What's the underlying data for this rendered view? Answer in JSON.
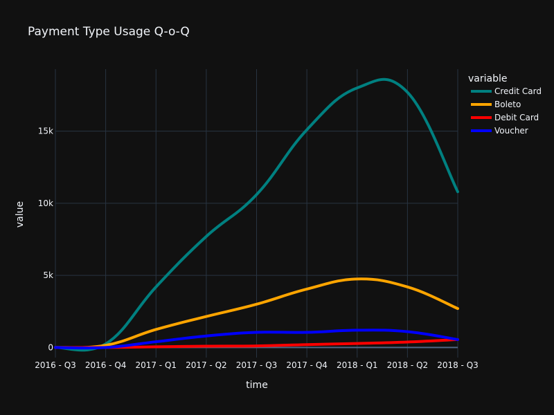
{
  "chart_data": {
    "type": "line",
    "title": "Payment Type Usage Q-o-Q",
    "xlabel": "time",
    "ylabel": "value",
    "categories": [
      "2016 - Q3",
      "2016 - Q4",
      "2017 - Q1",
      "2017 - Q2",
      "2017 - Q3",
      "2017 - Q4",
      "2018 - Q1",
      "2018 - Q2",
      "2018 - Q3"
    ],
    "ylim": [
      -700,
      19300
    ],
    "yticks": [
      0,
      5000,
      10000,
      15000
    ],
    "ytick_labels": [
      "0",
      "5k",
      "10k",
      "15k"
    ],
    "grid": true,
    "legend": {
      "title": "variable",
      "placement": "right"
    },
    "series": [
      {
        "name": "Credit Card",
        "color": "#008080",
        "values": [
          0,
          250,
          4200,
          7700,
          10600,
          15100,
          18000,
          17700,
          10800
        ]
      },
      {
        "name": "Boleto",
        "color": "#FFA500",
        "values": [
          0,
          150,
          1250,
          2150,
          3000,
          4050,
          4750,
          4200,
          2700
        ]
      },
      {
        "name": "Debit Card",
        "color": "#FF0000",
        "values": [
          0,
          0,
          50,
          90,
          110,
          200,
          280,
          380,
          550
        ]
      },
      {
        "name": "Voucher",
        "color": "#0000FF",
        "values": [
          0,
          0,
          400,
          800,
          1050,
          1050,
          1200,
          1100,
          550
        ]
      }
    ]
  }
}
